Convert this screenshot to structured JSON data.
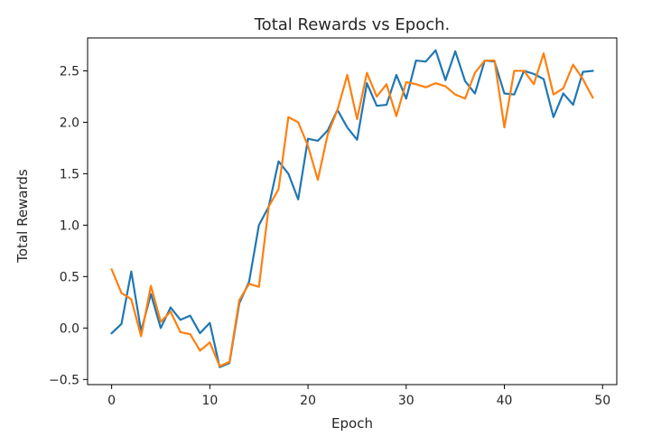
{
  "chart_data": {
    "type": "line",
    "title": "Total Rewards vs Epoch.",
    "xlabel": "Epoch",
    "ylabel": "Total Rewards",
    "xlim": [
      -2.45,
      51.45
    ],
    "ylim": [
      -0.55,
      2.82
    ],
    "xticks": [
      0,
      10,
      20,
      30,
      40,
      50
    ],
    "yticks": [
      -0.5,
      0.0,
      0.5,
      1.0,
      1.5,
      2.0,
      2.5
    ],
    "ytick_labels": [
      "−0.5",
      "0.0",
      "0.5",
      "1.0",
      "1.5",
      "2.0",
      "2.5"
    ],
    "grid": false,
    "x": [
      0,
      1,
      2,
      3,
      4,
      5,
      6,
      7,
      8,
      9,
      10,
      11,
      12,
      13,
      14,
      15,
      16,
      17,
      18,
      19,
      20,
      21,
      22,
      23,
      24,
      25,
      26,
      27,
      28,
      29,
      30,
      31,
      32,
      33,
      34,
      35,
      36,
      37,
      38,
      39,
      40,
      41,
      42,
      43,
      44,
      45,
      46,
      47,
      48,
      49
    ],
    "series": [
      {
        "color": "#1f77b4",
        "values": [
          -0.05,
          0.04,
          0.55,
          -0.03,
          0.33,
          0.0,
          0.2,
          0.08,
          0.12,
          -0.05,
          0.05,
          -0.38,
          -0.34,
          0.24,
          0.45,
          1.0,
          1.18,
          1.62,
          1.5,
          1.25,
          1.84,
          1.82,
          1.92,
          2.12,
          1.95,
          1.83,
          2.38,
          2.16,
          2.17,
          2.46,
          2.23,
          2.6,
          2.59,
          2.7,
          2.41,
          2.69,
          2.4,
          2.28,
          2.6,
          2.59,
          2.28,
          2.27,
          2.5,
          2.47,
          2.42,
          2.05,
          2.28,
          2.17,
          2.49,
          2.5
        ]
      },
      {
        "color": "#ff7f0e",
        "values": [
          0.57,
          0.34,
          0.28,
          -0.08,
          0.41,
          0.06,
          0.16,
          -0.04,
          -0.06,
          -0.22,
          -0.14,
          -0.37,
          -0.33,
          0.27,
          0.43,
          0.4,
          1.18,
          1.35,
          2.05,
          2.0,
          1.77,
          1.44,
          1.88,
          2.12,
          2.46,
          2.03,
          2.48,
          2.25,
          2.37,
          2.06,
          2.39,
          2.37,
          2.34,
          2.38,
          2.35,
          2.27,
          2.23,
          2.48,
          2.6,
          2.6,
          1.95,
          2.5,
          2.5,
          2.37,
          2.67,
          2.27,
          2.33,
          2.56,
          2.42,
          2.24
        ]
      }
    ]
  }
}
